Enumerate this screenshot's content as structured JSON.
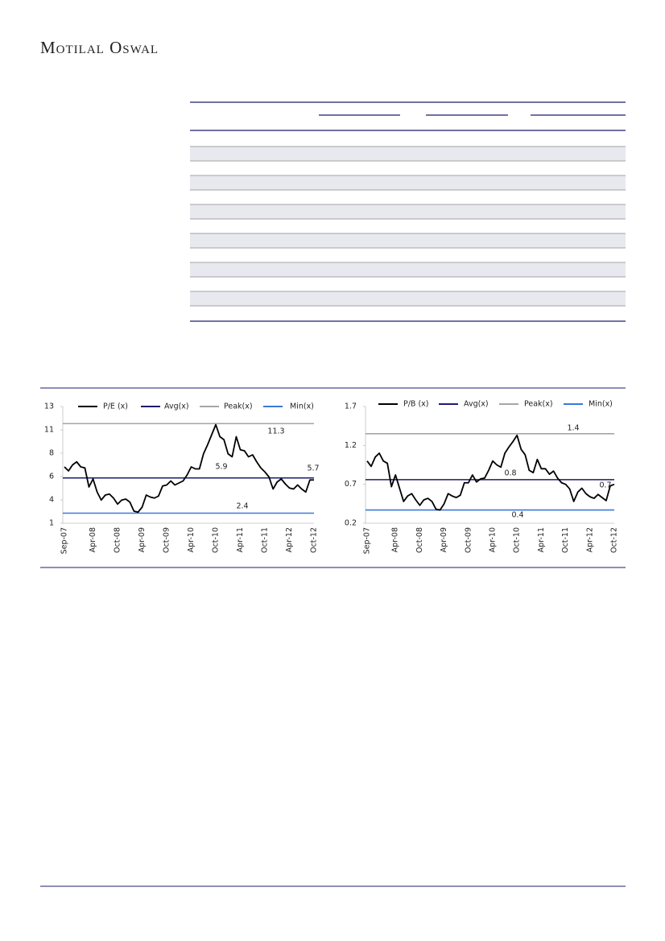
{
  "header": {
    "brand": "Motilal Oswal"
  },
  "chart_data": [
    {
      "type": "line",
      "categories": [
        "Sep-07",
        null,
        null,
        null,
        null,
        null,
        null,
        "Apr-08",
        null,
        null,
        null,
        null,
        null,
        "Oct-08",
        null,
        null,
        null,
        null,
        null,
        "Apr-09",
        null,
        null,
        null,
        null,
        null,
        "Oct-09",
        null,
        null,
        null,
        null,
        null,
        "Apr-10",
        null,
        null,
        null,
        null,
        null,
        "Oct-10",
        null,
        null,
        null,
        null,
        null,
        "Apr-11",
        null,
        null,
        null,
        null,
        null,
        "Oct-11",
        null,
        null,
        null,
        null,
        null,
        "Apr-12",
        null,
        null,
        null,
        null,
        null,
        "Oct-12"
      ],
      "series": [
        {
          "name": "P/E (x)",
          "color": "#000000",
          "values": [
            7.0,
            6.6,
            7.2,
            7.5,
            7.0,
            6.9,
            5.0,
            5.8,
            4.5,
            3.7,
            4.2,
            4.3,
            3.9,
            3.3,
            3.7,
            3.8,
            3.5,
            2.6,
            2.5,
            3.0,
            4.2,
            4.0,
            3.9,
            4.1,
            5.1,
            5.2,
            5.6,
            5.2,
            5.4,
            5.6,
            6.2,
            7.0,
            6.8,
            6.8,
            8.3,
            9.2,
            10.2,
            11.2,
            10.0,
            9.7,
            8.3,
            8.0,
            10.0,
            8.7,
            8.6,
            8.0,
            8.2,
            7.5,
            6.9,
            6.5,
            6.0,
            4.8,
            5.5,
            5.8,
            5.3,
            4.9,
            4.8,
            5.2,
            4.8,
            4.5,
            5.7,
            5.7
          ]
        }
      ],
      "reference_lines": [
        {
          "name": "Avg(x)",
          "color": "#1c1c6e",
          "value": 5.9
        },
        {
          "name": "Peak(x)",
          "color": "#a6a6a6",
          "value": 11.3
        },
        {
          "name": "Min(x)",
          "color": "#3b78d8",
          "value": 2.4
        }
      ],
      "ylim": [
        1.4,
        13
      ],
      "yticks": [
        {
          "value": 1.4,
          "label": "1"
        },
        {
          "value": 3.72,
          "label": "4"
        },
        {
          "value": 6.04,
          "label": "6"
        },
        {
          "value": 8.36,
          "label": "8"
        },
        {
          "value": 10.68,
          "label": "11"
        },
        {
          "value": 13,
          "label": "13"
        }
      ]
    },
    {
      "type": "line",
      "categories": [
        "Sep-07",
        null,
        null,
        null,
        null,
        null,
        null,
        "Apr-08",
        null,
        null,
        null,
        null,
        null,
        "Oct-08",
        null,
        null,
        null,
        null,
        null,
        "Apr-09",
        null,
        null,
        null,
        null,
        null,
        "Oct-09",
        null,
        null,
        null,
        null,
        null,
        "Apr-10",
        null,
        null,
        null,
        null,
        null,
        "Oct-10",
        null,
        null,
        null,
        null,
        null,
        "Apr-11",
        null,
        null,
        null,
        null,
        null,
        "Oct-11",
        null,
        null,
        null,
        null,
        null,
        "Apr-12",
        null,
        null,
        null,
        null,
        null,
        "Oct-12"
      ],
      "series": [
        {
          "name": "P/B (x)",
          "color": "#000000",
          "values": [
            1.0,
            0.93,
            1.05,
            1.1,
            1.0,
            0.97,
            0.67,
            0.82,
            0.65,
            0.48,
            0.55,
            0.58,
            0.5,
            0.43,
            0.5,
            0.52,
            0.48,
            0.38,
            0.37,
            0.45,
            0.58,
            0.55,
            0.53,
            0.56,
            0.72,
            0.72,
            0.82,
            0.73,
            0.77,
            0.78,
            0.88,
            1.0,
            0.95,
            0.92,
            1.1,
            1.18,
            1.25,
            1.33,
            1.15,
            1.08,
            0.88,
            0.85,
            1.02,
            0.9,
            0.9,
            0.83,
            0.87,
            0.78,
            0.72,
            0.7,
            0.64,
            0.48,
            0.6,
            0.65,
            0.58,
            0.54,
            0.52,
            0.57,
            0.53,
            0.49,
            0.68,
            0.7
          ]
        }
      ],
      "reference_lines": [
        {
          "name": "Avg(x)",
          "color": "#1c1c6e",
          "value": 0.76,
          "value_label": "0.8"
        },
        {
          "name": "Peak(x)",
          "color": "#a6a6a6",
          "value": 1.35,
          "value_label": "1.4"
        },
        {
          "name": "Min(x)",
          "color": "#3b78d8",
          "value": 0.37,
          "value_label": "0.4"
        }
      ],
      "ylim": [
        0.2,
        1.7
      ],
      "yticks": [
        0.2,
        0.7,
        1.2,
        1.7
      ]
    }
  ]
}
